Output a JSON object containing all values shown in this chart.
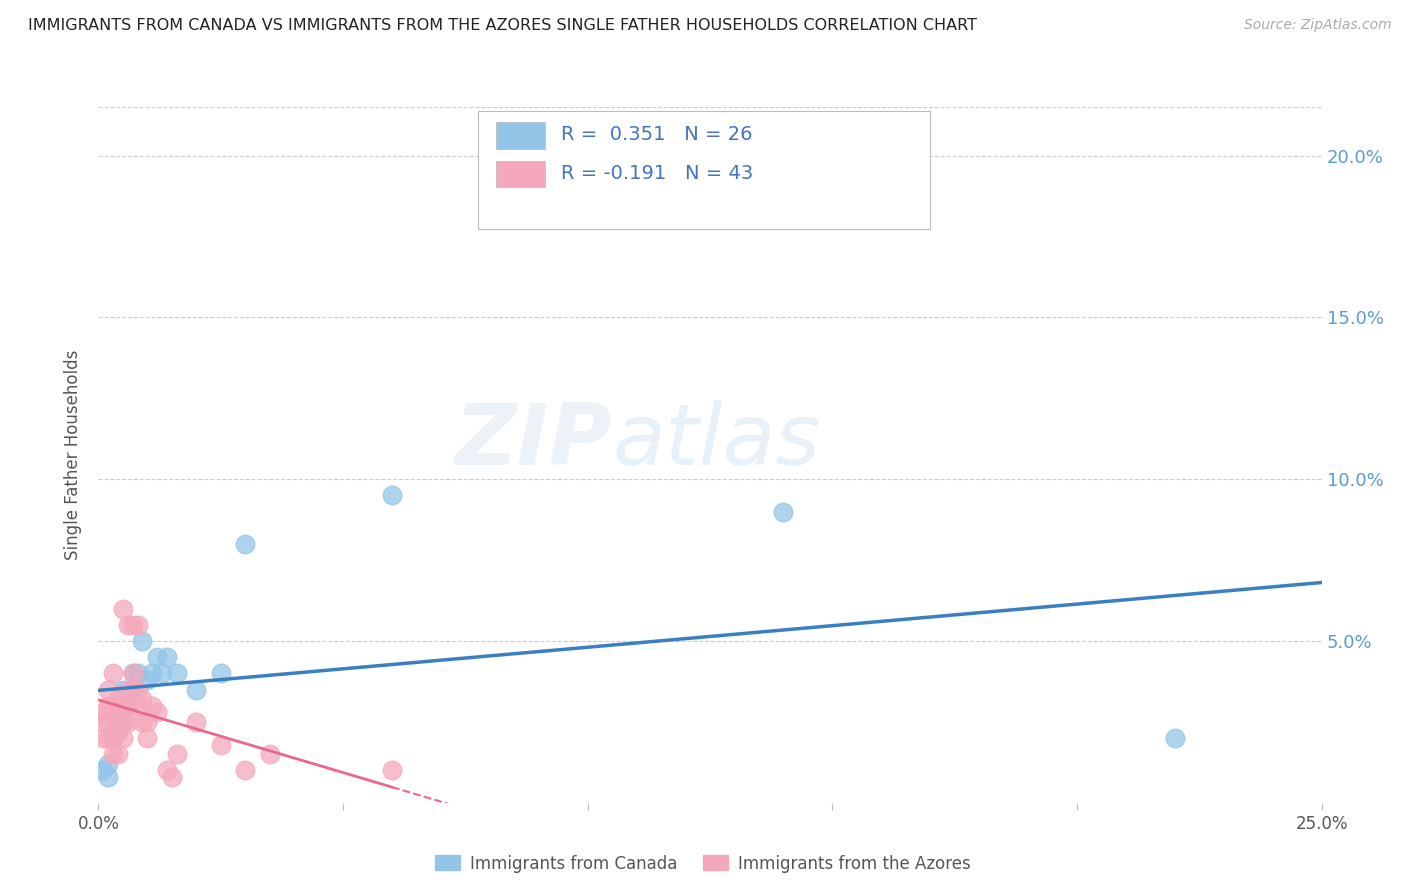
{
  "title": "IMMIGRANTS FROM CANADA VS IMMIGRANTS FROM THE AZORES SINGLE FATHER HOUSEHOLDS CORRELATION CHART",
  "source": "Source: ZipAtlas.com",
  "ylabel": "Single Father Households",
  "legend_blue_r": "R =  0.351",
  "legend_blue_n": "N = 26",
  "legend_pink_r": "R = -0.191",
  "legend_pink_n": "N = 43",
  "blue_color": "#92c5e8",
  "pink_color": "#f4a8bb",
  "trendline_blue": "#3a7fc1",
  "trendline_pink": "#e8698a",
  "background_color": "#ffffff",
  "grid_color": "#cccccc",
  "watermark_zip": "ZIP",
  "watermark_atlas": "atlas",
  "r_n_color": "#4472c4",
  "blue_x": [
    0.001,
    0.002,
    0.002,
    0.003,
    0.003,
    0.004,
    0.004,
    0.005,
    0.005,
    0.006,
    0.007,
    0.007,
    0.008,
    0.009,
    0.01,
    0.011,
    0.012,
    0.013,
    0.014,
    0.016,
    0.02,
    0.025,
    0.03,
    0.06,
    0.14,
    0.22
  ],
  "blue_y": [
    0.01,
    0.008,
    0.012,
    0.02,
    0.022,
    0.025,
    0.028,
    0.025,
    0.035,
    0.03,
    0.035,
    0.04,
    0.04,
    0.05,
    0.038,
    0.04,
    0.045,
    0.04,
    0.045,
    0.04,
    0.035,
    0.04,
    0.08,
    0.095,
    0.09,
    0.02
  ],
  "pink_x": [
    0.001,
    0.001,
    0.001,
    0.002,
    0.002,
    0.002,
    0.002,
    0.003,
    0.003,
    0.003,
    0.003,
    0.004,
    0.004,
    0.004,
    0.004,
    0.005,
    0.005,
    0.005,
    0.005,
    0.006,
    0.006,
    0.006,
    0.006,
    0.007,
    0.007,
    0.007,
    0.008,
    0.008,
    0.008,
    0.009,
    0.009,
    0.01,
    0.01,
    0.011,
    0.012,
    0.014,
    0.015,
    0.016,
    0.02,
    0.025,
    0.03,
    0.035,
    0.06
  ],
  "pink_y": [
    0.02,
    0.025,
    0.028,
    0.02,
    0.025,
    0.03,
    0.035,
    0.015,
    0.02,
    0.03,
    0.04,
    0.015,
    0.022,
    0.028,
    0.032,
    0.02,
    0.025,
    0.03,
    0.06,
    0.025,
    0.03,
    0.035,
    0.055,
    0.035,
    0.04,
    0.055,
    0.03,
    0.035,
    0.055,
    0.025,
    0.032,
    0.02,
    0.025,
    0.03,
    0.028,
    0.01,
    0.008,
    0.015,
    0.025,
    0.018,
    0.01,
    0.015,
    0.01
  ],
  "xmin": 0.0,
  "xmax": 0.25,
  "ymin": 0.0,
  "ymax": 0.215
}
